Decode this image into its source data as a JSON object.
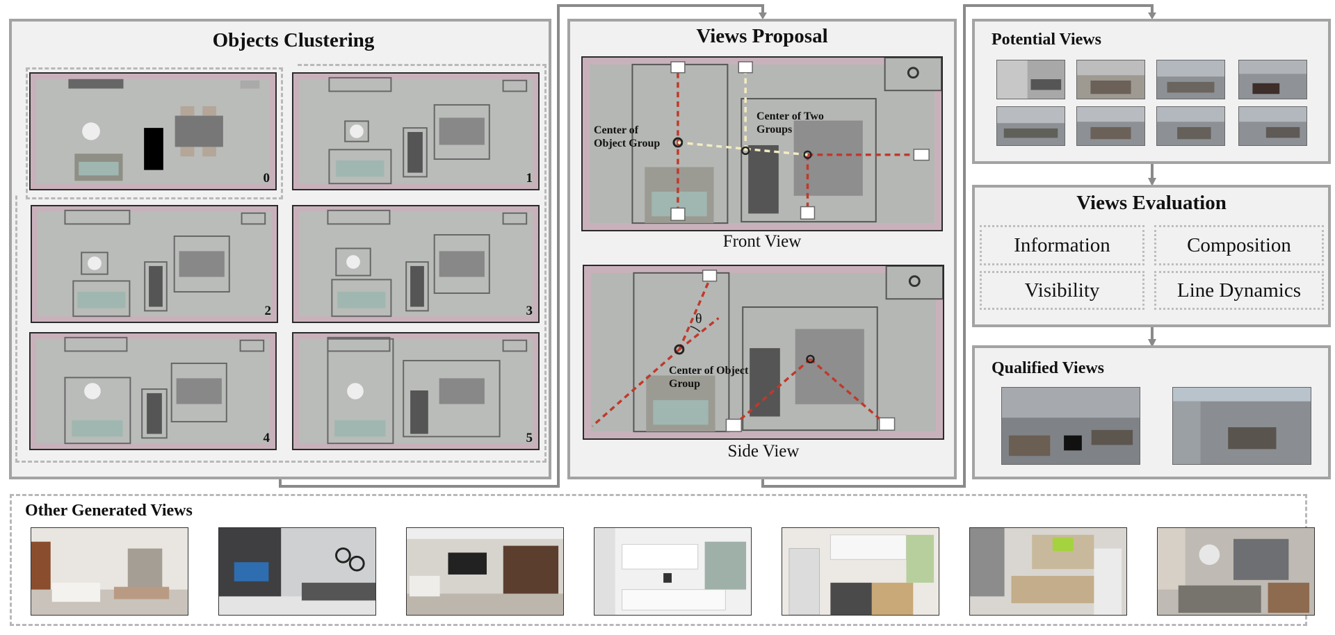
{
  "objects_clustering": {
    "title": "Objects Clustering",
    "tiles": [
      "0",
      "1",
      "2",
      "3",
      "4",
      "5"
    ]
  },
  "views_proposal": {
    "title": "Views Proposal",
    "front_caption": "Front View",
    "side_caption": "Side View",
    "center_object_group": "Center of Object Group",
    "center_two_groups": "Center of Two Groups",
    "theta": "θ"
  },
  "potential_views": {
    "title": "Potential Views"
  },
  "views_evaluation": {
    "title": "Views Evaluation",
    "metrics": [
      "Information",
      "Composition",
      "Visibility",
      "Line Dynamics"
    ]
  },
  "qualified_views": {
    "title": "Qualified Views"
  },
  "other_generated_views": {
    "title": "Other Generated Views"
  },
  "colors": {
    "panel_bg": "#f1f1f1",
    "panel_border": "#a3a3a3",
    "ray_red": "#c0392b",
    "ray_cream": "#f3ecc2",
    "room_floor": "#b9bcb8",
    "room_wall": "#c9b1bb"
  }
}
